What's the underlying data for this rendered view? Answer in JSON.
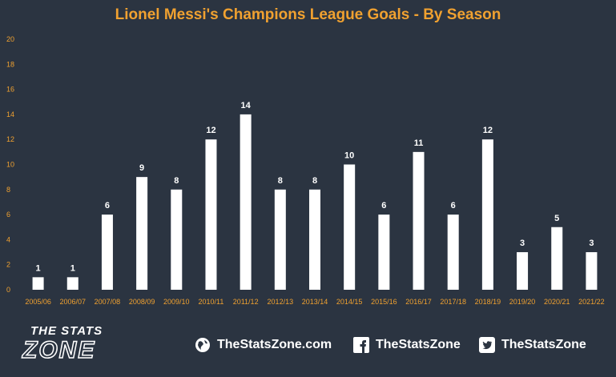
{
  "title": "Lionel Messi's Champions League Goals - By Season",
  "chart_data": {
    "type": "bar",
    "title": "Lionel Messi's Champions League Goals - By Season",
    "categories": [
      "2005/06",
      "2006/07",
      "2007/08",
      "2008/09",
      "2009/10",
      "2010/11",
      "2011/12",
      "2012/13",
      "2013/14",
      "2014/15",
      "2015/16",
      "2016/17",
      "2017/18",
      "2018/19",
      "2019/20",
      "2020/21",
      "2021/22"
    ],
    "values": [
      1,
      1,
      6,
      9,
      8,
      12,
      14,
      8,
      8,
      10,
      6,
      11,
      6,
      12,
      3,
      5,
      3
    ],
    "ylim": [
      0,
      20
    ],
    "yticks": [
      "0",
      "2",
      "4",
      "6",
      "8",
      "10",
      "12",
      "14",
      "16",
      "18",
      "20"
    ],
    "grid": false,
    "colors": {
      "bar": "#ffffff",
      "background": "#2b3441",
      "axis_text": "#f0a130",
      "title": "#f0a130"
    }
  },
  "footer": {
    "brand_top": "THE STATS",
    "brand_bottom": "ZONE",
    "website": "TheStatsZone.com",
    "facebook": "TheStatsZone",
    "twitter": "TheStatsZone",
    "icons": [
      "globe-icon",
      "facebook-icon",
      "twitter-icon"
    ]
  }
}
